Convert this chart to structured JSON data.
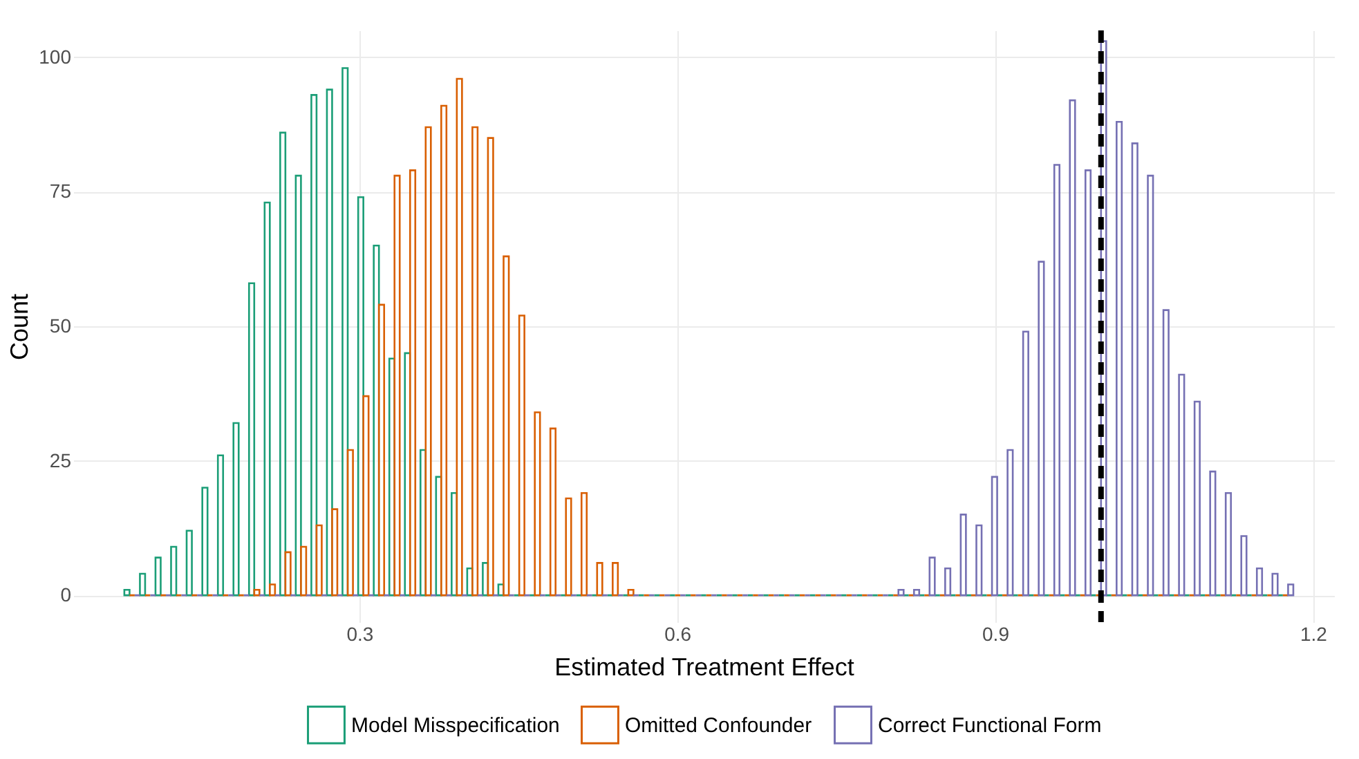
{
  "chart_data": {
    "type": "histogram",
    "xlabel": "Estimated Treatment Effect",
    "ylabel": "Count",
    "bins": [
      0.0782,
      0.0929,
      0.1076,
      0.1223,
      0.137,
      0.1518,
      0.1665,
      0.1812,
      0.1959,
      0.2106,
      0.2253,
      0.24,
      0.2547,
      0.2694,
      0.2841,
      0.2989,
      0.3136,
      0.3283,
      0.343,
      0.3577,
      0.3724,
      0.3871,
      0.4018,
      0.4165,
      0.4312,
      0.446,
      0.4607,
      0.4754,
      0.4901,
      0.5048,
      0.5195,
      0.5342,
      0.5489,
      0.5636,
      0.5783,
      0.5931,
      0.6078,
      0.6225,
      0.6372,
      0.6519,
      0.6666,
      0.6813,
      0.696,
      0.7107,
      0.7254,
      0.7402,
      0.7549,
      0.7696,
      0.7843,
      0.799,
      0.8137,
      0.8284,
      0.8431,
      0.8578,
      0.8725,
      0.8873,
      0.902,
      0.9167,
      0.9314,
      0.9461,
      0.9608,
      0.9755,
      0.9902,
      1.0049,
      1.0196,
      1.0344,
      1.0491,
      1.0638,
      1.0785,
      1.0932,
      1.1079,
      1.1226,
      1.1373,
      1.152,
      1.1667,
      1.1815
    ],
    "series": [
      {
        "name": "Model Misspecification",
        "color": "#1b9e77",
        "values": [
          1,
          4,
          7,
          9,
          12,
          20,
          26,
          32,
          58,
          73,
          86,
          78,
          93,
          94,
          98,
          74,
          65,
          44,
          45,
          27,
          22,
          19,
          5,
          6,
          2,
          0,
          0,
          0,
          0,
          0,
          0,
          0,
          0,
          0,
          0,
          0,
          0,
          0,
          0,
          0,
          0,
          0,
          0,
          0,
          0,
          0,
          0,
          0,
          0,
          0,
          0,
          0,
          0,
          0,
          0,
          0,
          0,
          0,
          0,
          0,
          0,
          0,
          0,
          0,
          0,
          0,
          0,
          0,
          0,
          0,
          0,
          0,
          0,
          0,
          0
        ]
      },
      {
        "name": "Omitted Confounder",
        "color": "#d95f02",
        "values": [
          0,
          0,
          0,
          0,
          0,
          0,
          0,
          0,
          1,
          2,
          8,
          9,
          13,
          16,
          27,
          37,
          54,
          78,
          79,
          87,
          91,
          96,
          87,
          85,
          63,
          52,
          34,
          31,
          18,
          19,
          6,
          6,
          1,
          0,
          0,
          0,
          0,
          0,
          0,
          0,
          0,
          0,
          0,
          0,
          0,
          0,
          0,
          0,
          0,
          0,
          0,
          0,
          0,
          0,
          0,
          0,
          0,
          0,
          0,
          0,
          0,
          0,
          0,
          0,
          0,
          0,
          0,
          0,
          0,
          0,
          0,
          0,
          0,
          0,
          0
        ]
      },
      {
        "name": "Correct Functional Form",
        "color": "#7570b3",
        "values": [
          0,
          0,
          0,
          0,
          0,
          0,
          0,
          0,
          0,
          0,
          0,
          0,
          0,
          0,
          0,
          0,
          0,
          0,
          0,
          0,
          0,
          0,
          0,
          0,
          0,
          0,
          0,
          0,
          0,
          0,
          0,
          0,
          0,
          0,
          0,
          0,
          0,
          0,
          0,
          0,
          0,
          0,
          0,
          0,
          0,
          0,
          0,
          0,
          0,
          1,
          1,
          7,
          5,
          15,
          13,
          22,
          27,
          49,
          62,
          80,
          92,
          79,
          103,
          88,
          84,
          78,
          53,
          41,
          36,
          23,
          19,
          11,
          5,
          4,
          2
        ]
      }
    ],
    "xlim": [
      0.03,
      1.22
    ],
    "ylim": [
      -5,
      105
    ],
    "xticks": [
      0.3,
      0.6,
      0.9,
      1.2
    ],
    "yticks": [
      0,
      25,
      50,
      75,
      100
    ],
    "ref_lines": [
      {
        "axis": "x",
        "value": 1.0,
        "color": "#000000",
        "line_style": "dashed"
      }
    ],
    "grid": true,
    "legend": "bottom"
  }
}
